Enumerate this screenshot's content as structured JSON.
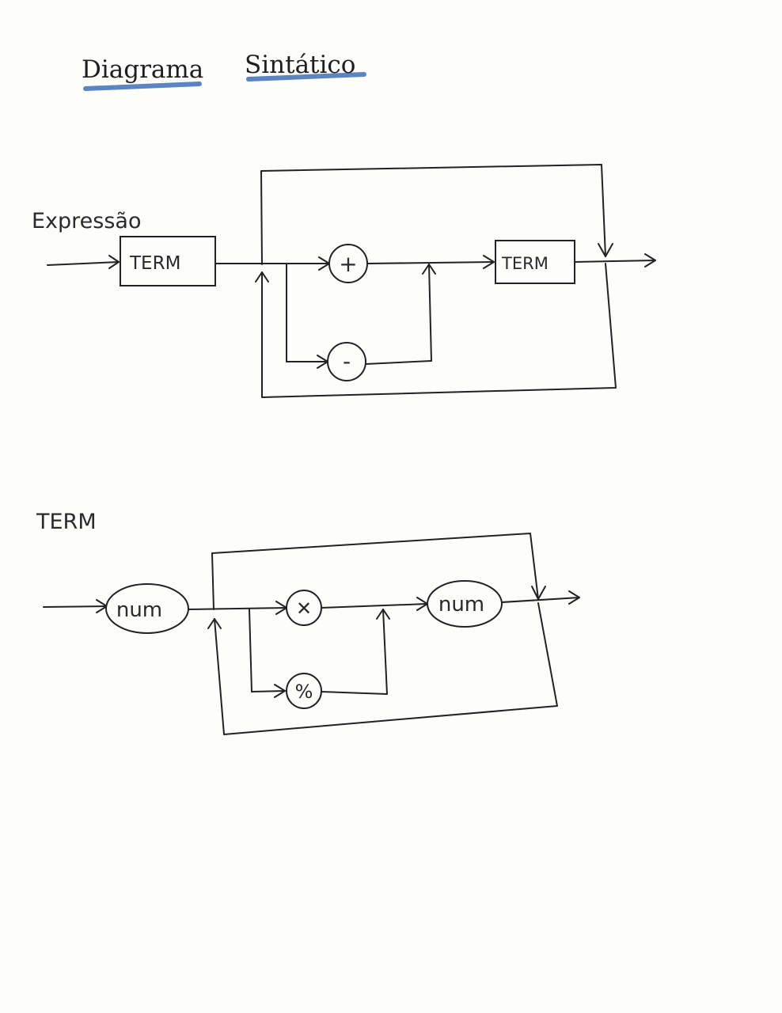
{
  "title": {
    "word1": "Diagrama",
    "word2": "Sintático"
  },
  "expressao": {
    "label": "Expressão",
    "term_in": "TERM",
    "op_plus": "+",
    "op_minus": "-",
    "term_out": "TERM"
  },
  "term": {
    "label": "TERM",
    "num_in": "num",
    "op_mul": "✕",
    "op_mod": "%",
    "num_out": "num"
  },
  "colors": {
    "ink": "#222222",
    "highlight": "#3f6fb7",
    "paper": "#fdfdfb"
  }
}
